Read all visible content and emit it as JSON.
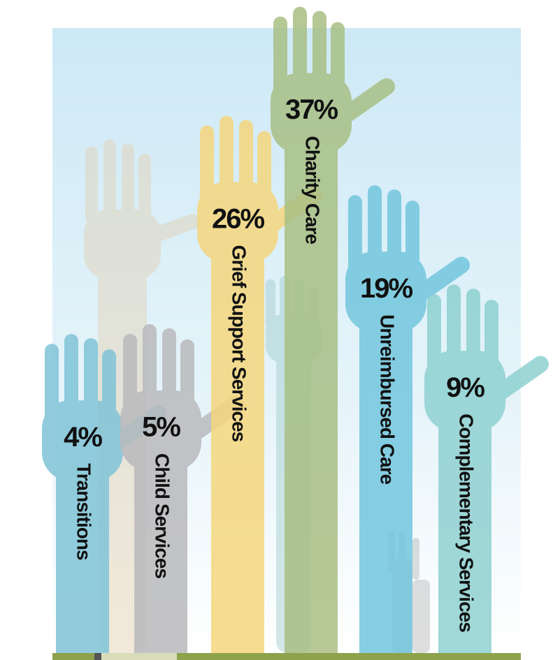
{
  "chart_data": {
    "type": "bar",
    "categories": [
      "Transitions",
      "Child Services",
      "Grief Support Services",
      "Charity Care",
      "Unreimbursed Care",
      "Complementary Services"
    ],
    "values": [
      4,
      5,
      26,
      37,
      19,
      9
    ],
    "value_labels": [
      "4%",
      "5%",
      "26%",
      "37%",
      "19%",
      "9%"
    ],
    "colors": [
      "#7fc3d6",
      "#b9b9bb",
      "#f5d67c",
      "#a8bf84",
      "#72c6dd",
      "#8fd0d0"
    ]
  }
}
